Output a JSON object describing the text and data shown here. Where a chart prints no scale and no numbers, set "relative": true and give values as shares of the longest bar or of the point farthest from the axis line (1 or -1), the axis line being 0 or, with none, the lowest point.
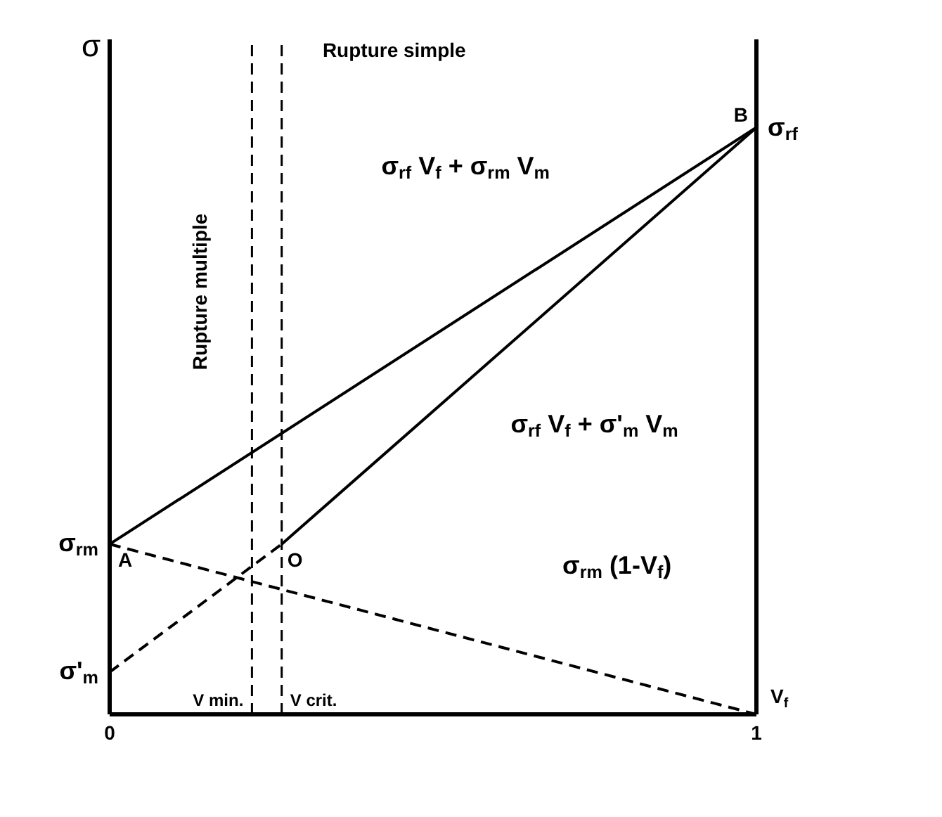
{
  "chart_data": {
    "type": "line",
    "relative": true,
    "ylabel": "σ",
    "xlabel": "V$_{f}$",
    "xlim": [
      0,
      1
    ],
    "xticks": [
      0,
      1
    ],
    "marker": "none",
    "series": [
      {
        "x": [
          0,
          1
        ],
        "values": [
          0.29,
          1
        ],
        "color": "#000000",
        "line_style": "solid"
      },
      {
        "x": [
          0,
          0.266
        ],
        "values": [
          0.072,
          0.29
        ],
        "color": "#000000",
        "line_style": "dashed"
      },
      {
        "x": [
          0.266,
          1
        ],
        "values": [
          0.29,
          1
        ],
        "color": "#000000",
        "line_style": "solid"
      },
      {
        "x": [
          0,
          1
        ],
        "values": [
          0.29,
          0
        ],
        "color": "#000000",
        "line_style": "dashed"
      }
    ],
    "ref_lines": [
      {
        "axis": "x",
        "value": 0.22,
        "label": "V min.",
        "line_style": "dashed",
        "color": "#000000"
      },
      {
        "axis": "x",
        "value": 0.266,
        "label": "V crit.",
        "line_style": "dashed",
        "color": "#000000"
      }
    ],
    "annotations": [
      "Rupture simple",
      "Rupture multiple",
      "σ$_{rf}$ V$_{f}$ + σ$_{rm}$ V$_{m}$",
      "σ$_{rf}$ V$_{f}$ + σ'$_{m}$ V$_{m}$",
      "σ$_{rm}$ (1-V$_{f}$)",
      {
        "text": "A",
        "x": 0,
        "y": 0.29
      },
      {
        "text": "B",
        "x": 1,
        "y": 1
      },
      {
        "text": "O",
        "x": 0.266,
        "y": 0.29
      },
      {
        "text": "σ$_{rm}$",
        "x": 0,
        "y": 0.29
      },
      {
        "text": "σ'$_{m}$",
        "x": 0,
        "y": 0.072
      },
      {
        "text": "σ$_{rf}$",
        "x": 1,
        "y": 1
      }
    ]
  }
}
